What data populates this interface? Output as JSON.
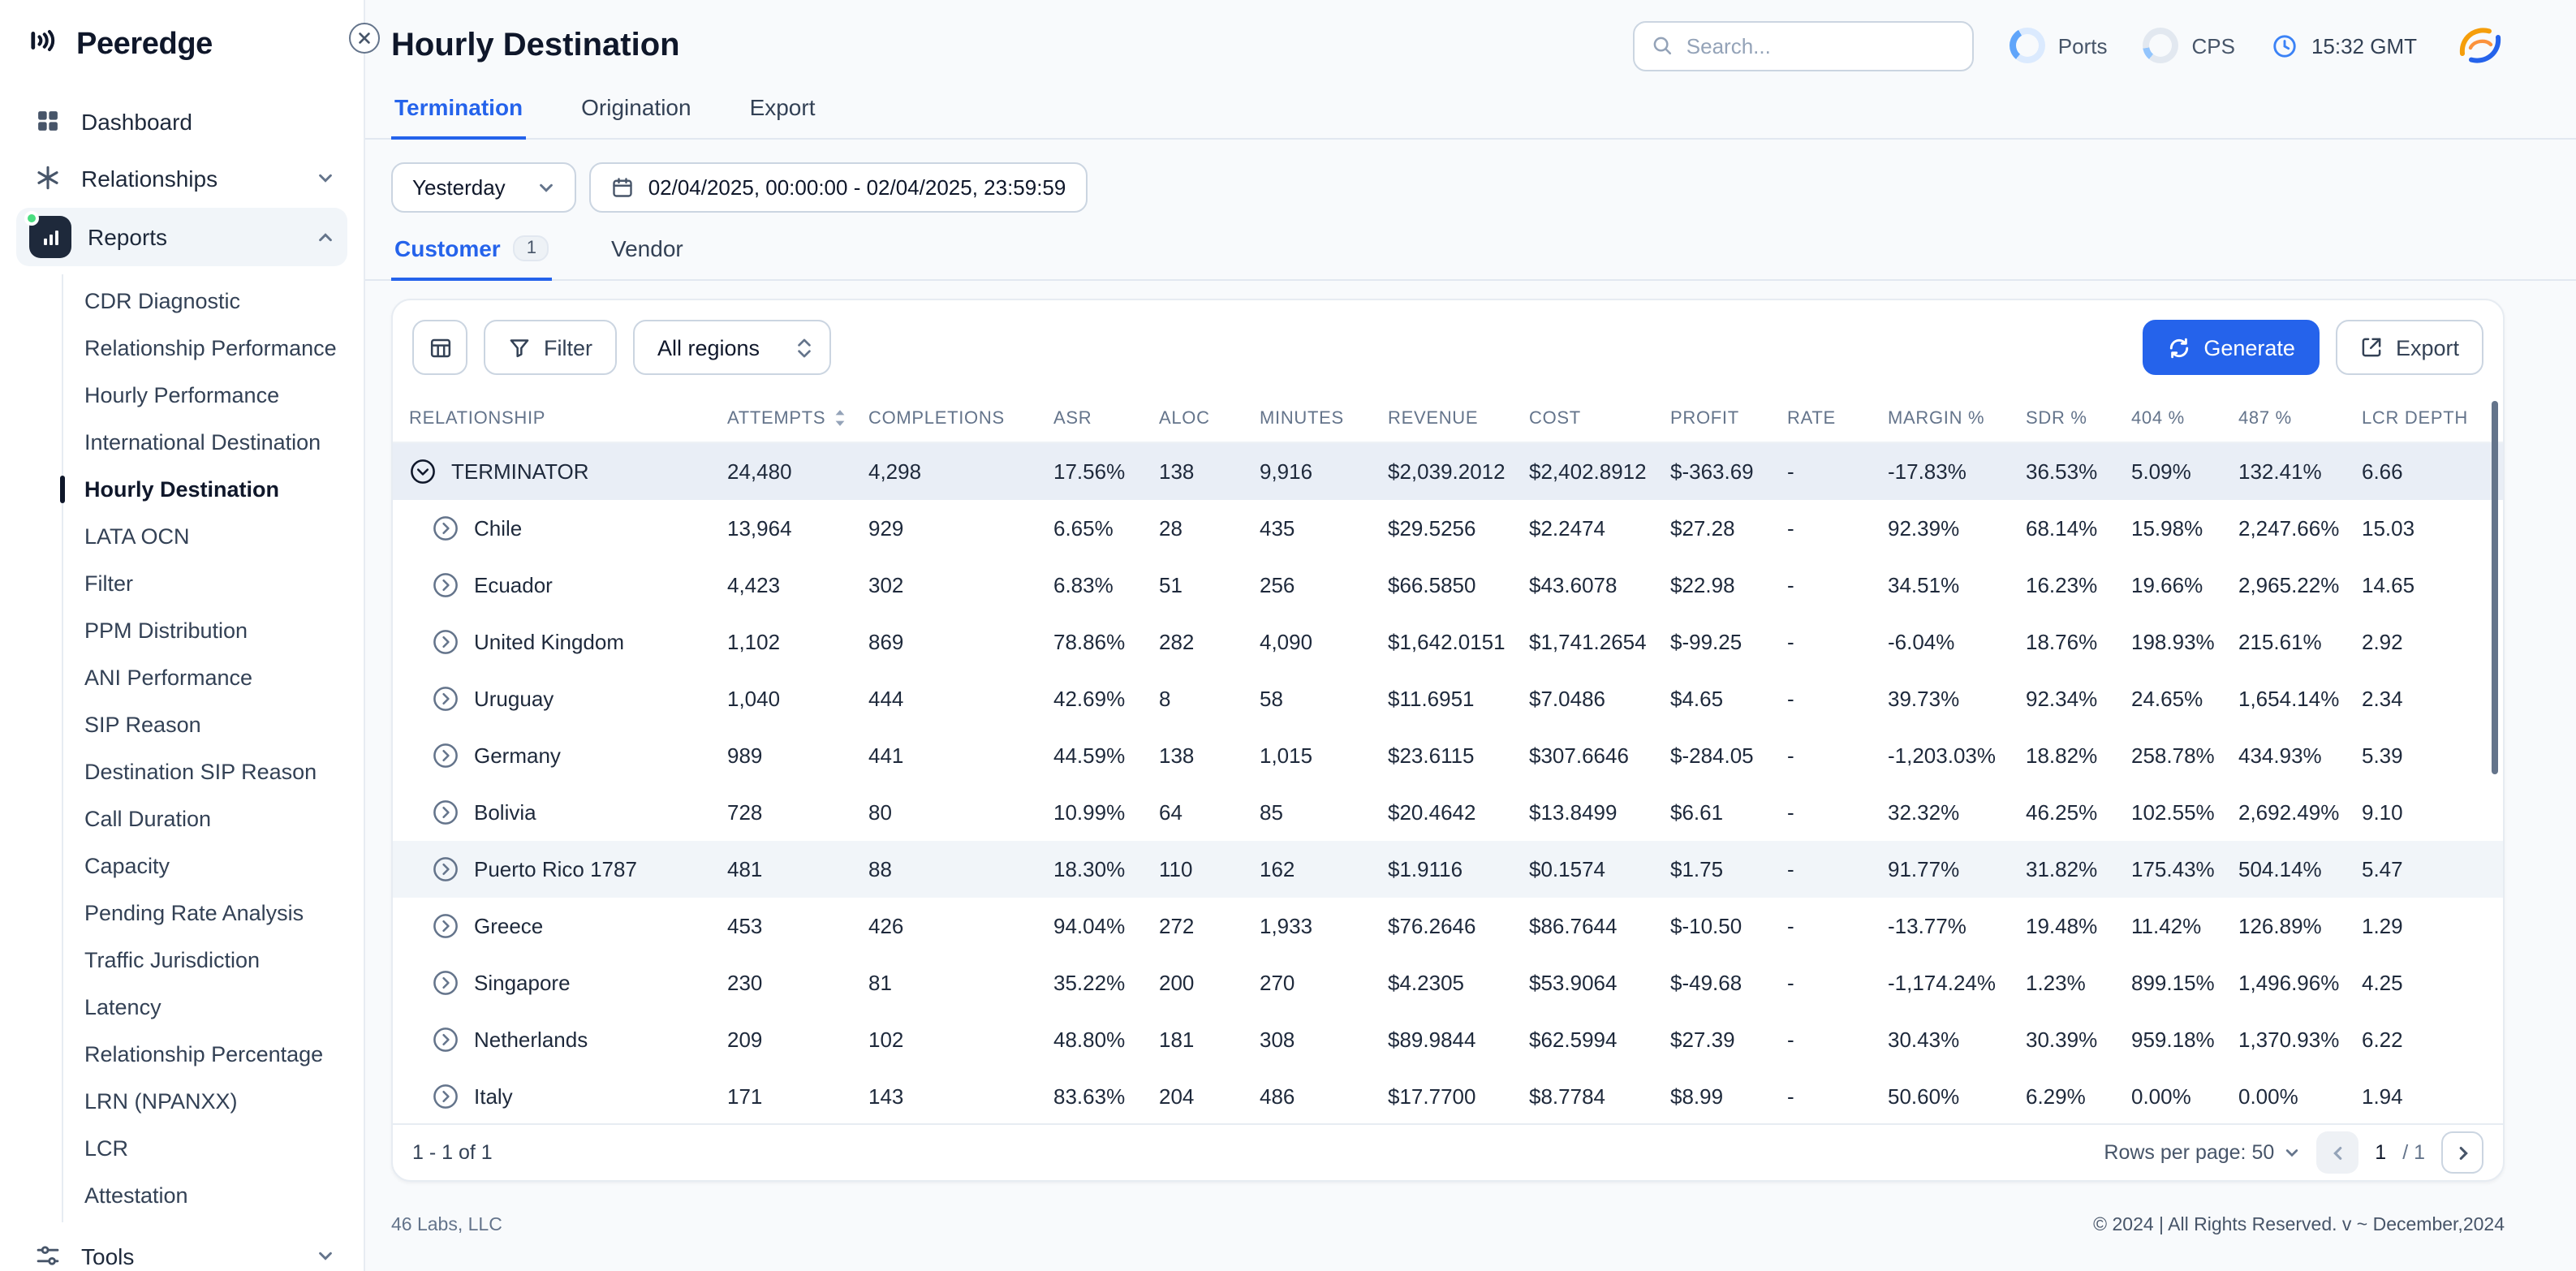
{
  "app": {
    "logo_text": "Peeredge"
  },
  "sidebar": {
    "items": {
      "dashboard": "Dashboard",
      "relationships": "Relationships",
      "reports": "Reports",
      "tools": "Tools"
    },
    "reports_children": [
      {
        "label": "CDR Diagnostic",
        "active": false
      },
      {
        "label": "Relationship Performance",
        "active": false
      },
      {
        "label": "Hourly Performance",
        "active": false
      },
      {
        "label": "International Destination",
        "active": false
      },
      {
        "label": "Hourly Destination",
        "active": true
      },
      {
        "label": "LATA OCN",
        "active": false
      },
      {
        "label": "Filter",
        "active": false
      },
      {
        "label": "PPM Distribution",
        "active": false
      },
      {
        "label": "ANI Performance",
        "active": false
      },
      {
        "label": "SIP Reason",
        "active": false
      },
      {
        "label": "Destination SIP Reason",
        "active": false
      },
      {
        "label": "Call Duration",
        "active": false
      },
      {
        "label": "Capacity",
        "active": false
      },
      {
        "label": "Pending Rate Analysis",
        "active": false
      },
      {
        "label": "Traffic Jurisdiction",
        "active": false
      },
      {
        "label": "Latency",
        "active": false
      },
      {
        "label": "Relationship Percentage",
        "active": false
      },
      {
        "label": "LRN (NPANXX)",
        "active": false
      },
      {
        "label": "LCR",
        "active": false
      },
      {
        "label": "Attestation",
        "active": false
      }
    ]
  },
  "header": {
    "title": "Hourly Destination",
    "search_placeholder": "Search...",
    "ports_label": "Ports",
    "cps_label": "CPS",
    "time": "15:32 GMT"
  },
  "tabs": [
    {
      "label": "Termination",
      "active": true
    },
    {
      "label": "Origination",
      "active": false
    },
    {
      "label": "Export",
      "active": false
    }
  ],
  "filters": {
    "preset": "Yesterday",
    "date_range": "02/04/2025, 00:00:00  - 02/04/2025, 23:59:59"
  },
  "subtabs": [
    {
      "label": "Customer",
      "badge": "1",
      "active": true
    },
    {
      "label": "Vendor",
      "badge": "",
      "active": false
    }
  ],
  "toolbar": {
    "filter_label": "Filter",
    "region_value": "All regions",
    "generate_label": "Generate",
    "export_label": "Export"
  },
  "table": {
    "columns": [
      "RELATIONSHIP",
      "ATTEMPTS",
      "COMPLETIONS",
      "ASR",
      "ALOC",
      "MINUTES",
      "REVENUE",
      "COST",
      "PROFIT",
      "RATE",
      "MARGIN %",
      "SDR %",
      "404 %",
      "487 %",
      "LCR DEPTH"
    ],
    "sorted_column": "ATTEMPTS",
    "rows": [
      {
        "name": "TERMINATOR",
        "group": true,
        "expanded": true,
        "selected": true,
        "values": [
          "24,480",
          "4,298",
          "17.56%",
          "138",
          "9,916",
          "$2,039.2012",
          "$2,402.8912",
          "$-363.69",
          "-",
          "-17.83%",
          "36.53%",
          "5.09%",
          "132.41%",
          "6.66"
        ]
      },
      {
        "name": "Chile",
        "values": [
          "13,964",
          "929",
          "6.65%",
          "28",
          "435",
          "$29.5256",
          "$2.2474",
          "$27.28",
          "-",
          "92.39%",
          "68.14%",
          "15.98%",
          "2,247.66%",
          "15.03"
        ]
      },
      {
        "name": "Ecuador",
        "values": [
          "4,423",
          "302",
          "6.83%",
          "51",
          "256",
          "$66.5850",
          "$43.6078",
          "$22.98",
          "-",
          "34.51%",
          "16.23%",
          "19.66%",
          "2,965.22%",
          "14.65"
        ]
      },
      {
        "name": "United Kingdom",
        "values": [
          "1,102",
          "869",
          "78.86%",
          "282",
          "4,090",
          "$1,642.0151",
          "$1,741.2654",
          "$-99.25",
          "-",
          "-6.04%",
          "18.76%",
          "198.93%",
          "215.61%",
          "2.92"
        ]
      },
      {
        "name": "Uruguay",
        "values": [
          "1,040",
          "444",
          "42.69%",
          "8",
          "58",
          "$11.6951",
          "$7.0486",
          "$4.65",
          "-",
          "39.73%",
          "92.34%",
          "24.65%",
          "1,654.14%",
          "2.34"
        ]
      },
      {
        "name": "Germany",
        "values": [
          "989",
          "441",
          "44.59%",
          "138",
          "1,015",
          "$23.6115",
          "$307.6646",
          "$-284.05",
          "-",
          "-1,203.03%",
          "18.82%",
          "258.78%",
          "434.93%",
          "5.39"
        ]
      },
      {
        "name": "Bolivia",
        "values": [
          "728",
          "80",
          "10.99%",
          "64",
          "85",
          "$20.4642",
          "$13.8499",
          "$6.61",
          "-",
          "32.32%",
          "46.25%",
          "102.55%",
          "2,692.49%",
          "9.10"
        ]
      },
      {
        "name": "Puerto Rico 1787",
        "hover": true,
        "values": [
          "481",
          "88",
          "18.30%",
          "110",
          "162",
          "$1.9116",
          "$0.1574",
          "$1.75",
          "-",
          "91.77%",
          "31.82%",
          "175.43%",
          "504.14%",
          "5.47"
        ]
      },
      {
        "name": "Greece",
        "values": [
          "453",
          "426",
          "94.04%",
          "272",
          "1,933",
          "$76.2646",
          "$86.7644",
          "$-10.50",
          "-",
          "-13.77%",
          "19.48%",
          "11.42%",
          "126.89%",
          "1.29"
        ]
      },
      {
        "name": "Singapore",
        "values": [
          "230",
          "81",
          "35.22%",
          "200",
          "270",
          "$4.2305",
          "$53.9064",
          "$-49.68",
          "-",
          "-1,174.24%",
          "1.23%",
          "899.15%",
          "1,496.96%",
          "4.25"
        ]
      },
      {
        "name": "Netherlands",
        "values": [
          "209",
          "102",
          "48.80%",
          "181",
          "308",
          "$89.9844",
          "$62.5994",
          "$27.39",
          "-",
          "30.43%",
          "30.39%",
          "959.18%",
          "1,370.93%",
          "6.22"
        ]
      },
      {
        "name": "Italy",
        "values": [
          "171",
          "143",
          "83.63%",
          "204",
          "486",
          "$17.7700",
          "$8.7784",
          "$8.99",
          "-",
          "50.60%",
          "6.29%",
          "0.00%",
          "0.00%",
          "1.94"
        ]
      }
    ]
  },
  "pagination": {
    "range_text": "1 - 1 of 1",
    "rows_per_page_label": "Rows per page: 50",
    "current_page": "1",
    "total_pages_label": "/ 1"
  },
  "footer": {
    "company": "46 Labs, LLC",
    "copyright": "© 2024 | All Rights Reserved. v ~ December,2024"
  }
}
